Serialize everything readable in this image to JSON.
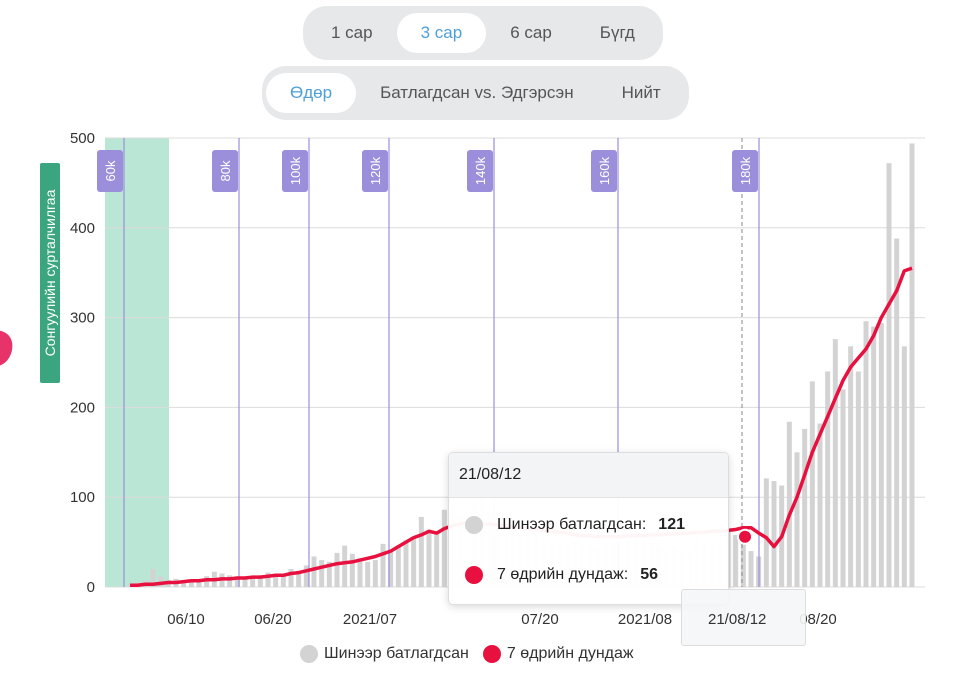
{
  "range_tabs": {
    "options": [
      {
        "label": "1 сар",
        "active": false
      },
      {
        "label": "3 сар",
        "active": true
      },
      {
        "label": "6 сар",
        "active": false
      },
      {
        "label": "Бүгд",
        "active": false
      }
    ]
  },
  "mode_tabs": {
    "options": [
      {
        "label": "Өдөр",
        "active": true
      },
      {
        "label": "Батлагдсан vs. Эдгэрсэн",
        "active": false
      },
      {
        "label": "Нийт",
        "active": false
      }
    ]
  },
  "colors": {
    "bar": "#d3d3d3",
    "line": "#e8103e",
    "marker": "#9b8fdb",
    "band": "#7fd1b3",
    "ylabel_bg": "#3aa57f"
  },
  "chart_data": {
    "type": "bar",
    "ylabel": "Сонгуулийн сурталчилгаа",
    "ylim": [
      0,
      500
    ],
    "yticks": [
      0,
      100,
      200,
      300,
      400,
      500
    ],
    "xticks": [
      "06/10",
      "06/20",
      "2021/07",
      "07/20",
      "2021/08",
      "21/08/12",
      "08/20"
    ],
    "markers": [
      "60k",
      "80k",
      "100k",
      "120k",
      "140k",
      "160k",
      "180k"
    ],
    "series": [
      {
        "name": "Шинээр батлагдсан",
        "values": [
          3,
          5,
          7,
          20,
          12,
          8,
          9,
          6,
          6,
          5,
          12,
          17,
          15,
          13,
          10,
          9,
          11,
          13,
          16,
          14,
          15,
          20,
          18,
          24,
          34,
          30,
          28,
          38,
          46,
          37,
          32,
          28,
          30,
          48,
          40,
          46,
          52,
          54,
          78,
          64,
          60,
          86,
          84,
          80,
          26,
          96,
          108,
          84,
          60,
          57,
          56,
          58,
          60,
          58,
          50,
          49,
          52,
          49,
          50,
          47,
          48,
          44,
          46,
          48,
          50,
          52,
          54,
          52,
          49,
          45,
          41,
          43,
          40,
          38,
          54,
          48,
          46,
          50,
          65,
          58,
          54,
          40,
          34,
          121,
          118,
          113,
          184,
          150,
          176,
          229,
          182,
          240,
          276,
          220,
          268,
          240,
          296,
          290,
          294,
          472,
          388,
          268,
          494
        ]
      },
      {
        "name": "7 өдрийн дундаж",
        "values": [
          2,
          2,
          3,
          3,
          4,
          5,
          5,
          6,
          7,
          7,
          8,
          8,
          9,
          9,
          10,
          10,
          11,
          11,
          12,
          13,
          13,
          15,
          16,
          18,
          20,
          22,
          24,
          26,
          27,
          28,
          30,
          32,
          34,
          37,
          40,
          45,
          50,
          55,
          58,
          62,
          60,
          65,
          68,
          70,
          72,
          71,
          70,
          70,
          69,
          68,
          67,
          66,
          65,
          64,
          63,
          62,
          61,
          60,
          58,
          57,
          57,
          56,
          56,
          56,
          56,
          57,
          57,
          57,
          58,
          58,
          59,
          59,
          60,
          60,
          61,
          61,
          62,
          62,
          63,
          64,
          66,
          66,
          60,
          55,
          45,
          56,
          80,
          100,
          125,
          150,
          170,
          190,
          210,
          230,
          245,
          255,
          265,
          280,
          300,
          315,
          330,
          352,
          355
        ]
      }
    ],
    "tooltip": {
      "date": "21/08/12",
      "rows": [
        {
          "label": "Шинээр батлагдсан:",
          "value": "121"
        },
        {
          "label": "7 өдрийн дундаж:",
          "value": "56"
        }
      ]
    },
    "legend_position": "bottom"
  }
}
